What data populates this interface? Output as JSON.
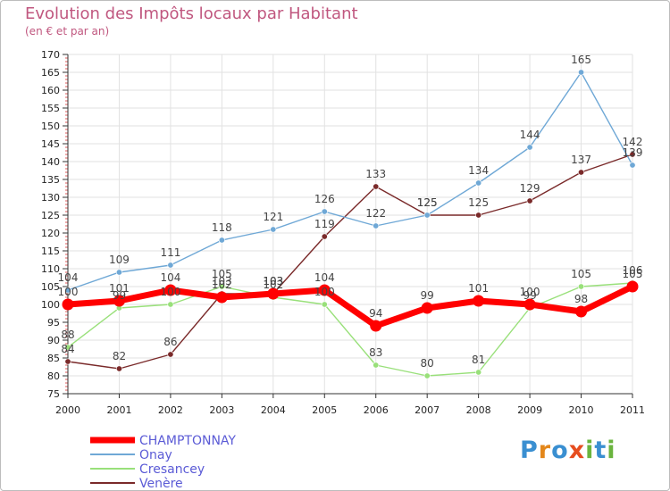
{
  "title": "Evolution des Impôts locaux par Habitant",
  "subtitle": "(en € et par an)",
  "logo_text": "Proxiti",
  "chart_data": {
    "type": "line",
    "title": "Evolution des Impôts locaux par Habitant",
    "subtitle": "(en € et par an)",
    "xlabel": "",
    "ylabel": "",
    "x": [
      "2000",
      "2001",
      "2002",
      "2003",
      "2004",
      "2005",
      "2006",
      "2007",
      "2008",
      "2009",
      "2010",
      "2011"
    ],
    "ylim": [
      75,
      170
    ],
    "yticks": [
      75,
      80,
      85,
      90,
      95,
      100,
      105,
      110,
      115,
      120,
      125,
      130,
      135,
      140,
      145,
      150,
      155,
      160,
      165,
      170
    ],
    "grid": true,
    "legend_position": "bottom-left",
    "series": [
      {
        "name": "CHAMPTONNAY",
        "color": "#ff0000",
        "values": [
          100,
          101,
          104,
          102,
          103,
          104,
          94,
          99,
          101,
          100,
          98,
          105
        ]
      },
      {
        "name": "Onay",
        "color": "#6fa8d6",
        "values": [
          104,
          109,
          111,
          118,
          121,
          126,
          122,
          125,
          134,
          144,
          165,
          139
        ]
      },
      {
        "name": "Cresancey",
        "color": "#99e07a",
        "values": [
          88,
          99,
          100,
          105,
          102,
          100,
          83,
          80,
          81,
          99,
          105,
          106
        ]
      },
      {
        "name": "Venère",
        "color": "#7a2a2a",
        "values": [
          84,
          82,
          86,
          103,
          103,
          119,
          133,
          125,
          125,
          129,
          137,
          142
        ]
      }
    ]
  }
}
